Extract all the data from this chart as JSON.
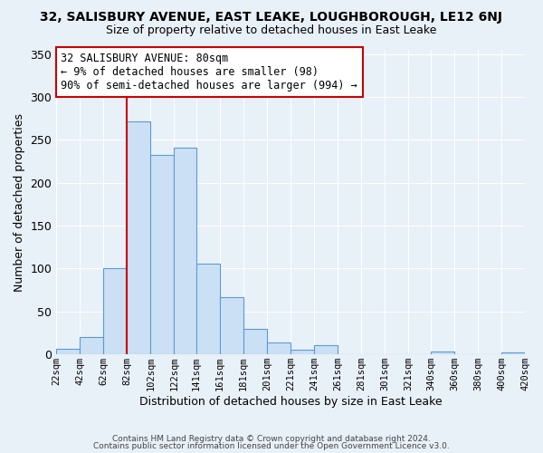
{
  "title_line1": "32, SALISBURY AVENUE, EAST LEAKE, LOUGHBOROUGH, LE12 6NJ",
  "title_line2": "Size of property relative to detached houses in East Leake",
  "xlabel": "Distribution of detached houses by size in East Leake",
  "ylabel": "Number of detached properties",
  "bin_labels": [
    "22sqm",
    "42sqm",
    "62sqm",
    "82sqm",
    "102sqm",
    "122sqm",
    "141sqm",
    "161sqm",
    "181sqm",
    "201sqm",
    "221sqm",
    "241sqm",
    "261sqm",
    "281sqm",
    "301sqm",
    "321sqm",
    "340sqm",
    "360sqm",
    "380sqm",
    "400sqm",
    "420sqm"
  ],
  "bin_edges": [
    22,
    42,
    62,
    82,
    102,
    122,
    141,
    161,
    181,
    201,
    221,
    241,
    261,
    281,
    301,
    321,
    340,
    360,
    380,
    400,
    420
  ],
  "bar_heights": [
    7,
    20,
    100,
    272,
    232,
    241,
    106,
    67,
    30,
    14,
    5,
    11,
    0,
    0,
    0,
    0,
    3,
    0,
    0,
    2
  ],
  "bar_color": "#cce0f5",
  "bar_edge_color": "#5b9bd5",
  "vline_x": 82,
  "vline_color": "#cc0000",
  "annotation_text": "32 SALISBURY AVENUE: 80sqm\n← 9% of detached houses are smaller (98)\n90% of semi-detached houses are larger (994) →",
  "annotation_box_color": "#ffffff",
  "annotation_box_edge": "#cc0000",
  "ylim": [
    0,
    355
  ],
  "yticks": [
    0,
    50,
    100,
    150,
    200,
    250,
    300,
    350
  ],
  "bg_color": "#e8f0f8",
  "grid_color": "#ffffff",
  "footer_line1": "Contains HM Land Registry data © Crown copyright and database right 2024.",
  "footer_line2": "Contains public sector information licensed under the Open Government Licence v3.0."
}
